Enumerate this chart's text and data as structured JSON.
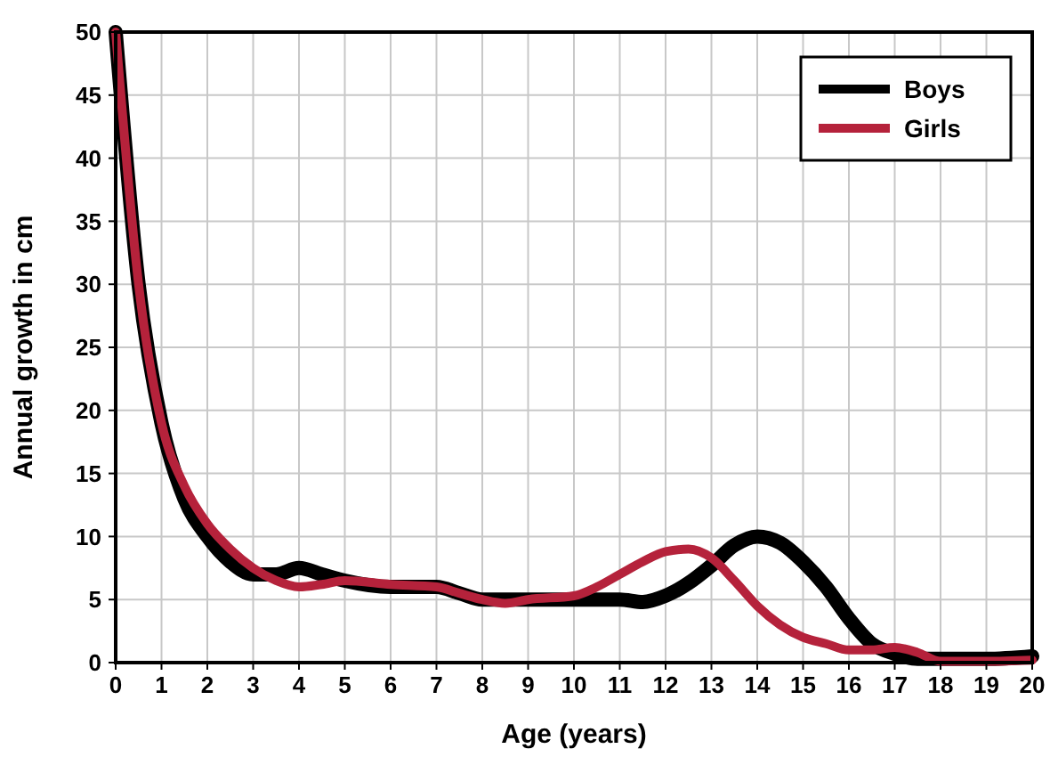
{
  "chart_data": {
    "type": "line",
    "xlabel": "Age (years)",
    "ylabel": "Annual growth in cm",
    "xlim": [
      0,
      20
    ],
    "xticks": [
      0,
      1,
      2,
      3,
      4,
      5,
      6,
      7,
      8,
      9,
      10,
      11,
      12,
      13,
      14,
      15,
      16,
      17,
      18,
      19,
      20
    ],
    "ylim": [
      0,
      50
    ],
    "yticks": [
      0,
      5,
      10,
      15,
      20,
      25,
      30,
      35,
      40,
      45,
      50
    ],
    "grid": true,
    "legend": "top right",
    "line_style": "solid",
    "marker": "none",
    "series": [
      {
        "name": "Boys",
        "color": "#000000",
        "x": [
          0,
          0.5,
          1,
          1.5,
          2,
          2.5,
          3,
          3.5,
          4,
          4.5,
          5,
          6,
          6.5,
          7,
          7.5,
          8,
          9,
          10,
          11,
          11.5,
          12,
          12.5,
          13,
          13.5,
          14,
          14.5,
          15,
          15.5,
          16,
          16.5,
          17,
          17.5,
          18,
          19,
          20
        ],
        "values": [
          50,
          30,
          19,
          13,
          10,
          8,
          7,
          7,
          7.5,
          7,
          6.5,
          6,
          6,
          6,
          5.5,
          5,
          5,
          5,
          5,
          4.8,
          5.3,
          6.3,
          7.7,
          9.3,
          10,
          9.5,
          8,
          6,
          3.5,
          1.5,
          0.7,
          0.3,
          0.3,
          0.3,
          0.5
        ]
      },
      {
        "name": "Girls",
        "color": "#b5223b",
        "x": [
          0,
          0.5,
          1,
          1.5,
          2,
          2.5,
          3,
          3.5,
          4,
          4.5,
          5,
          6,
          7,
          7.5,
          8,
          8.5,
          9,
          10,
          10.5,
          11,
          11.5,
          12,
          12.5,
          13,
          13.5,
          14,
          14.5,
          15,
          15.5,
          16,
          16.5,
          17,
          17.5,
          18,
          19,
          20
        ],
        "values": [
          50,
          30,
          19,
          14,
          11,
          9,
          7.5,
          6.5,
          6,
          6.2,
          6.5,
          6.2,
          6,
          5.5,
          5,
          4.7,
          5,
          5.3,
          6,
          7,
          8,
          8.8,
          9,
          8.3,
          6.5,
          4.5,
          3,
          2,
          1.5,
          1,
          1,
          1.2,
          0.8,
          0.1,
          0.1,
          0.2
        ]
      }
    ]
  }
}
